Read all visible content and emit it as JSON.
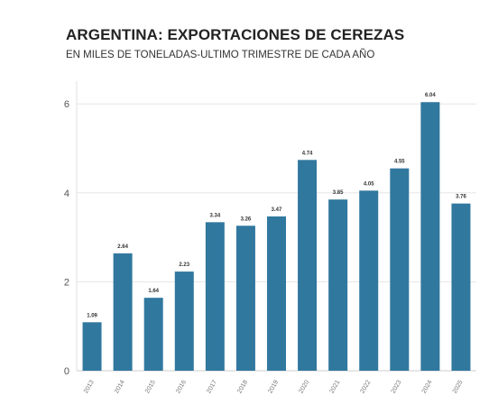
{
  "chart_data": {
    "type": "bar",
    "title": "ARGENTINA: EXPORTACIONES DE CEREZAS",
    "subtitle": "EN MILES DE TONELADAS-ULTIMO TRIMESTRE DE CADA AÑO",
    "categories": [
      "2013",
      "2014",
      "2015",
      "2016",
      "2017",
      "2018",
      "2019",
      "2020",
      "2021",
      "2022",
      "2023",
      "2024",
      "2025"
    ],
    "values": [
      1.09,
      2.64,
      1.64,
      2.23,
      3.34,
      3.26,
      3.47,
      4.74,
      3.85,
      4.05,
      4.55,
      6.04,
      3.76
    ],
    "data_labels": [
      "1.09",
      "2.64",
      "1.64",
      "2.23",
      "3.34",
      "3.26",
      "3.47",
      "4.74",
      "3.85",
      "4.05",
      "4.55",
      "6.04",
      "3.76"
    ],
    "yticks": [
      "0",
      "2",
      "4",
      "6"
    ],
    "ylim": [
      0,
      6.5
    ],
    "xlabel": "",
    "ylabel": "",
    "grid": true,
    "bar_color": "#31789f"
  }
}
